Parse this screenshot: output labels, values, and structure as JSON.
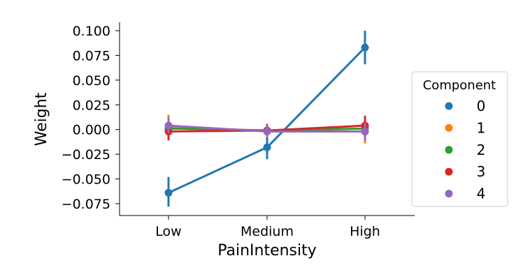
{
  "chart_data": {
    "type": "line",
    "title": "",
    "xlabel": "PainIntensity",
    "ylabel": "Weight",
    "categories": [
      "Low",
      "Medium",
      "High"
    ],
    "yticks": [
      "0.100",
      "0.075",
      "0.050",
      "0.025",
      "0.000",
      "−0.025",
      "−0.050",
      "−0.075"
    ],
    "ytick_values": [
      0.1,
      0.075,
      0.05,
      0.025,
      0.0,
      -0.025,
      -0.05,
      -0.075
    ],
    "ylim": [
      -0.087,
      0.109
    ],
    "grid": false,
    "legend": {
      "title": "Component",
      "placement": "right"
    },
    "series": [
      {
        "name": "0",
        "color": "#1f77b4",
        "values": [
          -0.064,
          -0.018,
          0.083
        ],
        "err_low": [
          -0.078,
          -0.03,
          0.066
        ],
        "err_high": [
          -0.048,
          -0.007,
          0.1
        ]
      },
      {
        "name": "1",
        "color": "#ff7f0e",
        "values": [
          0.002,
          -0.001,
          -0.002
        ],
        "err_low": [
          -0.01,
          -0.008,
          -0.014
        ],
        "err_high": [
          0.015,
          0.006,
          0.01
        ]
      },
      {
        "name": "2",
        "color": "#2ca02c",
        "values": [
          0.001,
          -0.001,
          0.001
        ],
        "err_low": [
          -0.008,
          -0.006,
          -0.008
        ],
        "err_high": [
          0.01,
          0.005,
          0.01
        ]
      },
      {
        "name": "3",
        "color": "#d62728",
        "values": [
          -0.002,
          -0.001,
          0.004
        ],
        "err_low": [
          -0.011,
          -0.007,
          -0.005
        ],
        "err_high": [
          0.007,
          0.005,
          0.014
        ]
      },
      {
        "name": "4",
        "color": "#9467bd",
        "values": [
          0.004,
          -0.002,
          -0.002
        ],
        "err_low": [
          -0.004,
          -0.007,
          -0.011
        ],
        "err_high": [
          0.012,
          0.004,
          0.007
        ]
      }
    ]
  }
}
